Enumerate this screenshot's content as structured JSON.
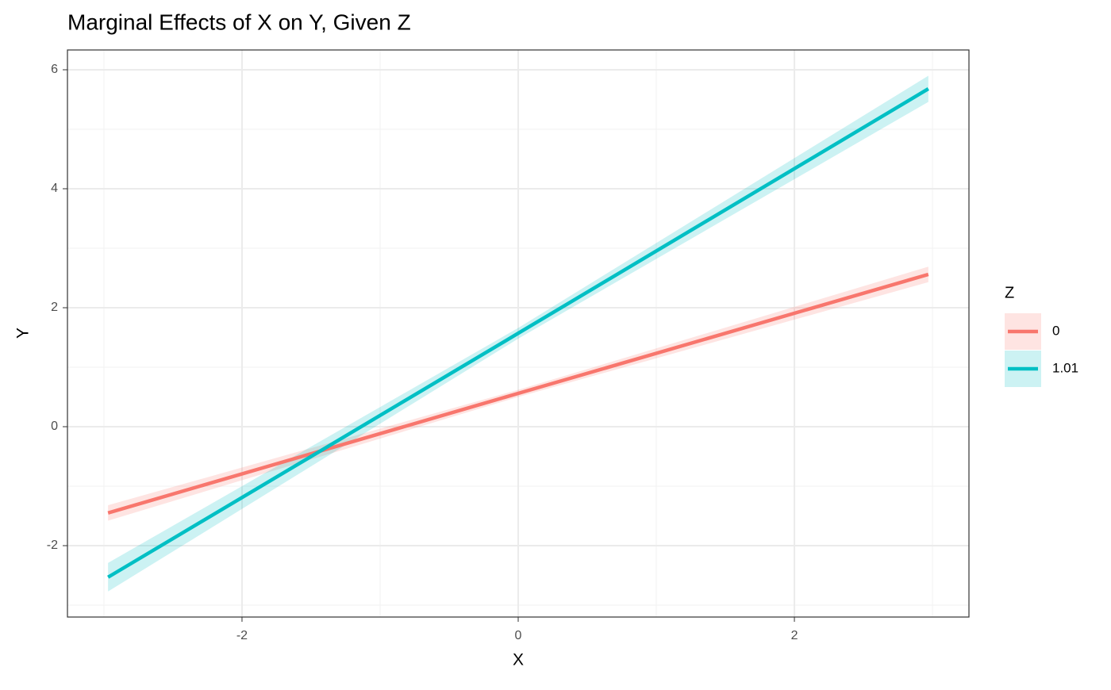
{
  "chart_data": {
    "type": "line",
    "title": "Marginal Effects of X on Y, Given Z",
    "x_label": "X",
    "y_label": "Y",
    "legend_title": "Z",
    "legend_position": "right",
    "x": [
      -2.97,
      0,
      2.97
    ],
    "series": [
      {
        "name": "0",
        "color": "#F8766D",
        "values": [
          -1.45,
          0.56,
          2.56
        ],
        "lower": [
          -1.58,
          0.5,
          2.43
        ],
        "upper": [
          -1.32,
          0.62,
          2.69
        ]
      },
      {
        "name": "1.01",
        "color": "#00BFC4",
        "values": [
          -2.53,
          1.57,
          5.68
        ],
        "lower": [
          -2.77,
          1.48,
          5.46
        ],
        "upper": [
          -2.29,
          1.66,
          5.9
        ]
      }
    ],
    "xlim": [
      -3.264,
      3.264
    ],
    "ylim": [
      -3.2,
      6.333
    ],
    "xticks": [
      -2,
      0,
      2
    ],
    "yticks": [
      -2,
      0,
      2,
      4,
      6
    ],
    "x_minor_ticks": [
      -3,
      -1,
      1,
      3
    ],
    "y_minor_ticks": [
      -3,
      -1,
      1,
      3,
      5
    ],
    "grid": true
  }
}
